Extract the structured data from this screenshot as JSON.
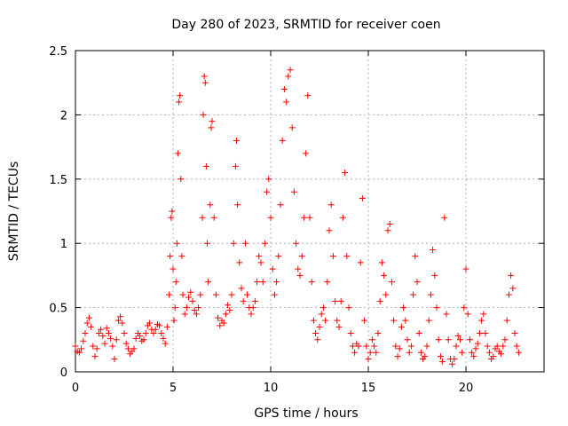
{
  "chart_data": {
    "type": "scatter",
    "title": "Day 280 of 2023, SRMTID for receiver coen",
    "xlabel": "GPS time / hours",
    "ylabel": "SRMTID / TECUs",
    "xlim": [
      0,
      24
    ],
    "ylim": [
      0,
      2.5
    ],
    "xticks": [
      0,
      5,
      10,
      15,
      20
    ],
    "xtick_labels": [
      "0",
      "5",
      "10",
      "15",
      "20"
    ],
    "yticks": [
      0,
      0.5,
      1,
      1.5,
      2,
      2.5
    ],
    "ytick_labels": [
      "0",
      "0.5",
      "1",
      "1.5",
      "2",
      "2.5"
    ],
    "grid": true,
    "marker": "plus",
    "series": [
      {
        "name": "SRMTID",
        "color": "#ff0000",
        "points": [
          [
            0.0,
            0.2
          ],
          [
            0.1,
            0.16
          ],
          [
            0.2,
            0.15
          ],
          [
            0.3,
            0.18
          ],
          [
            0.4,
            0.24
          ],
          [
            0.5,
            0.3
          ],
          [
            0.6,
            0.38
          ],
          [
            0.7,
            0.42
          ],
          [
            0.8,
            0.35
          ],
          [
            0.9,
            0.2
          ],
          [
            1.0,
            0.12
          ],
          [
            1.1,
            0.18
          ],
          [
            1.2,
            0.3
          ],
          [
            1.3,
            0.33
          ],
          [
            1.4,
            0.28
          ],
          [
            1.5,
            0.22
          ],
          [
            1.6,
            0.34
          ],
          [
            1.7,
            0.3
          ],
          [
            1.8,
            0.26
          ],
          [
            1.9,
            0.2
          ],
          [
            2.0,
            0.1
          ],
          [
            2.1,
            0.25
          ],
          [
            2.2,
            0.4
          ],
          [
            2.3,
            0.43
          ],
          [
            2.4,
            0.38
          ],
          [
            2.5,
            0.3
          ],
          [
            2.6,
            0.22
          ],
          [
            2.7,
            0.18
          ],
          [
            2.8,
            0.14
          ],
          [
            2.9,
            0.16
          ],
          [
            3.0,
            0.18
          ],
          [
            3.1,
            0.26
          ],
          [
            3.2,
            0.3
          ],
          [
            3.3,
            0.28
          ],
          [
            3.4,
            0.24
          ],
          [
            3.5,
            0.25
          ],
          [
            3.6,
            0.3
          ],
          [
            3.7,
            0.36
          ],
          [
            3.8,
            0.38
          ],
          [
            3.9,
            0.33
          ],
          [
            4.0,
            0.3
          ],
          [
            4.1,
            0.33
          ],
          [
            4.2,
            0.37
          ],
          [
            4.3,
            0.36
          ],
          [
            4.4,
            0.3
          ],
          [
            4.5,
            0.26
          ],
          [
            4.6,
            0.22
          ],
          [
            4.7,
            0.35
          ],
          [
            4.8,
            0.6
          ],
          [
            4.85,
            0.9
          ],
          [
            4.9,
            1.2
          ],
          [
            4.95,
            1.25
          ],
          [
            5.0,
            0.8
          ],
          [
            5.05,
            0.4
          ],
          [
            5.1,
            0.5
          ],
          [
            5.15,
            0.7
          ],
          [
            5.2,
            1.0
          ],
          [
            5.25,
            1.7
          ],
          [
            5.3,
            2.1
          ],
          [
            5.35,
            2.15
          ],
          [
            5.4,
            1.5
          ],
          [
            5.45,
            0.9
          ],
          [
            5.5,
            0.6
          ],
          [
            5.6,
            0.45
          ],
          [
            5.7,
            0.5
          ],
          [
            5.8,
            0.58
          ],
          [
            5.9,
            0.62
          ],
          [
            6.0,
            0.55
          ],
          [
            6.1,
            0.48
          ],
          [
            6.2,
            0.45
          ],
          [
            6.3,
            0.5
          ],
          [
            6.4,
            0.6
          ],
          [
            6.5,
            1.2
          ],
          [
            6.55,
            2.0
          ],
          [
            6.6,
            2.3
          ],
          [
            6.65,
            2.25
          ],
          [
            6.7,
            1.6
          ],
          [
            6.75,
            1.0
          ],
          [
            6.8,
            0.7
          ],
          [
            6.9,
            1.3
          ],
          [
            6.95,
            1.9
          ],
          [
            7.0,
            1.95
          ],
          [
            7.1,
            1.2
          ],
          [
            7.2,
            0.6
          ],
          [
            7.3,
            0.42
          ],
          [
            7.4,
            0.36
          ],
          [
            7.5,
            0.4
          ],
          [
            7.6,
            0.38
          ],
          [
            7.7,
            0.45
          ],
          [
            7.8,
            0.52
          ],
          [
            7.9,
            0.48
          ],
          [
            8.0,
            0.6
          ],
          [
            8.1,
            1.0
          ],
          [
            8.2,
            1.6
          ],
          [
            8.25,
            1.8
          ],
          [
            8.3,
            1.3
          ],
          [
            8.4,
            0.85
          ],
          [
            8.5,
            0.65
          ],
          [
            8.6,
            0.55
          ],
          [
            8.7,
            1.0
          ],
          [
            8.8,
            0.6
          ],
          [
            8.9,
            0.5
          ],
          [
            9.0,
            0.45
          ],
          [
            9.1,
            0.5
          ],
          [
            9.2,
            0.55
          ],
          [
            9.3,
            0.7
          ],
          [
            9.4,
            0.9
          ],
          [
            9.5,
            0.85
          ],
          [
            9.6,
            0.7
          ],
          [
            9.7,
            1.0
          ],
          [
            9.8,
            1.4
          ],
          [
            9.9,
            1.5
          ],
          [
            10.0,
            1.2
          ],
          [
            10.1,
            0.8
          ],
          [
            10.2,
            0.6
          ],
          [
            10.3,
            0.7
          ],
          [
            10.4,
            0.9
          ],
          [
            10.5,
            1.3
          ],
          [
            10.6,
            1.8
          ],
          [
            10.7,
            2.2
          ],
          [
            10.8,
            2.1
          ],
          [
            10.9,
            2.3
          ],
          [
            11.0,
            2.35
          ],
          [
            11.1,
            1.9
          ],
          [
            11.2,
            1.4
          ],
          [
            11.3,
            1.0
          ],
          [
            11.4,
            0.8
          ],
          [
            11.5,
            0.75
          ],
          [
            11.6,
            0.9
          ],
          [
            11.7,
            1.2
          ],
          [
            11.8,
            1.7
          ],
          [
            11.9,
            2.15
          ],
          [
            12.0,
            1.2
          ],
          [
            12.1,
            0.7
          ],
          [
            12.2,
            0.4
          ],
          [
            12.3,
            0.3
          ],
          [
            12.4,
            0.25
          ],
          [
            12.5,
            0.35
          ],
          [
            12.6,
            0.45
          ],
          [
            12.7,
            0.5
          ],
          [
            12.8,
            0.4
          ],
          [
            12.9,
            0.7
          ],
          [
            13.0,
            1.1
          ],
          [
            13.1,
            1.3
          ],
          [
            13.2,
            0.9
          ],
          [
            13.3,
            0.55
          ],
          [
            13.4,
            0.4
          ],
          [
            13.5,
            0.35
          ],
          [
            13.6,
            0.55
          ],
          [
            13.7,
            1.2
          ],
          [
            13.8,
            1.55
          ],
          [
            13.9,
            0.9
          ],
          [
            14.0,
            0.5
          ],
          [
            14.1,
            0.3
          ],
          [
            14.2,
            0.2
          ],
          [
            14.3,
            0.15
          ],
          [
            14.4,
            0.22
          ],
          [
            14.5,
            0.2
          ],
          [
            14.6,
            0.85
          ],
          [
            14.7,
            1.35
          ],
          [
            14.8,
            0.4
          ],
          [
            14.9,
            0.2
          ],
          [
            15.0,
            0.1
          ],
          [
            15.1,
            0.15
          ],
          [
            15.2,
            0.25
          ],
          [
            15.3,
            0.2
          ],
          [
            15.4,
            0.15
          ],
          [
            15.5,
            0.3
          ],
          [
            15.6,
            0.55
          ],
          [
            15.7,
            0.85
          ],
          [
            15.8,
            0.75
          ],
          [
            15.9,
            0.6
          ],
          [
            16.0,
            1.1
          ],
          [
            16.1,
            1.15
          ],
          [
            16.2,
            0.7
          ],
          [
            16.3,
            0.4
          ],
          [
            16.4,
            0.2
          ],
          [
            16.5,
            0.12
          ],
          [
            16.6,
            0.18
          ],
          [
            16.7,
            0.35
          ],
          [
            16.8,
            0.5
          ],
          [
            16.9,
            0.4
          ],
          [
            17.0,
            0.25
          ],
          [
            17.1,
            0.15
          ],
          [
            17.2,
            0.2
          ],
          [
            17.3,
            0.6
          ],
          [
            17.4,
            0.9
          ],
          [
            17.5,
            0.7
          ],
          [
            17.6,
            0.3
          ],
          [
            17.7,
            0.15
          ],
          [
            17.8,
            0.1
          ],
          [
            17.9,
            0.12
          ],
          [
            18.0,
            0.2
          ],
          [
            18.1,
            0.4
          ],
          [
            18.2,
            0.6
          ],
          [
            18.3,
            0.95
          ],
          [
            18.4,
            0.75
          ],
          [
            18.5,
            0.5
          ],
          [
            18.6,
            0.25
          ],
          [
            18.7,
            0.12
          ],
          [
            18.8,
            0.08
          ],
          [
            18.9,
            1.2
          ],
          [
            19.0,
            0.45
          ],
          [
            19.1,
            0.25
          ],
          [
            19.2,
            0.1
          ],
          [
            19.3,
            0.06
          ],
          [
            19.4,
            0.1
          ],
          [
            19.5,
            0.2
          ],
          [
            19.6,
            0.28
          ],
          [
            19.7,
            0.25
          ],
          [
            19.8,
            0.15
          ],
          [
            19.9,
            0.5
          ],
          [
            20.0,
            0.8
          ],
          [
            20.1,
            0.45
          ],
          [
            20.2,
            0.25
          ],
          [
            20.3,
            0.15
          ],
          [
            20.4,
            0.12
          ],
          [
            20.5,
            0.18
          ],
          [
            20.6,
            0.22
          ],
          [
            20.7,
            0.3
          ],
          [
            20.8,
            0.4
          ],
          [
            20.9,
            0.45
          ],
          [
            21.0,
            0.3
          ],
          [
            21.1,
            0.2
          ],
          [
            21.2,
            0.15
          ],
          [
            21.3,
            0.1
          ],
          [
            21.4,
            0.12
          ],
          [
            21.5,
            0.18
          ],
          [
            21.6,
            0.2
          ],
          [
            21.7,
            0.16
          ],
          [
            21.8,
            0.14
          ],
          [
            21.9,
            0.2
          ],
          [
            22.0,
            0.25
          ],
          [
            22.1,
            0.4
          ],
          [
            22.2,
            0.6
          ],
          [
            22.3,
            0.75
          ],
          [
            22.4,
            0.65
          ],
          [
            22.5,
            0.3
          ],
          [
            22.6,
            0.2
          ],
          [
            22.7,
            0.15
          ]
        ]
      }
    ]
  }
}
